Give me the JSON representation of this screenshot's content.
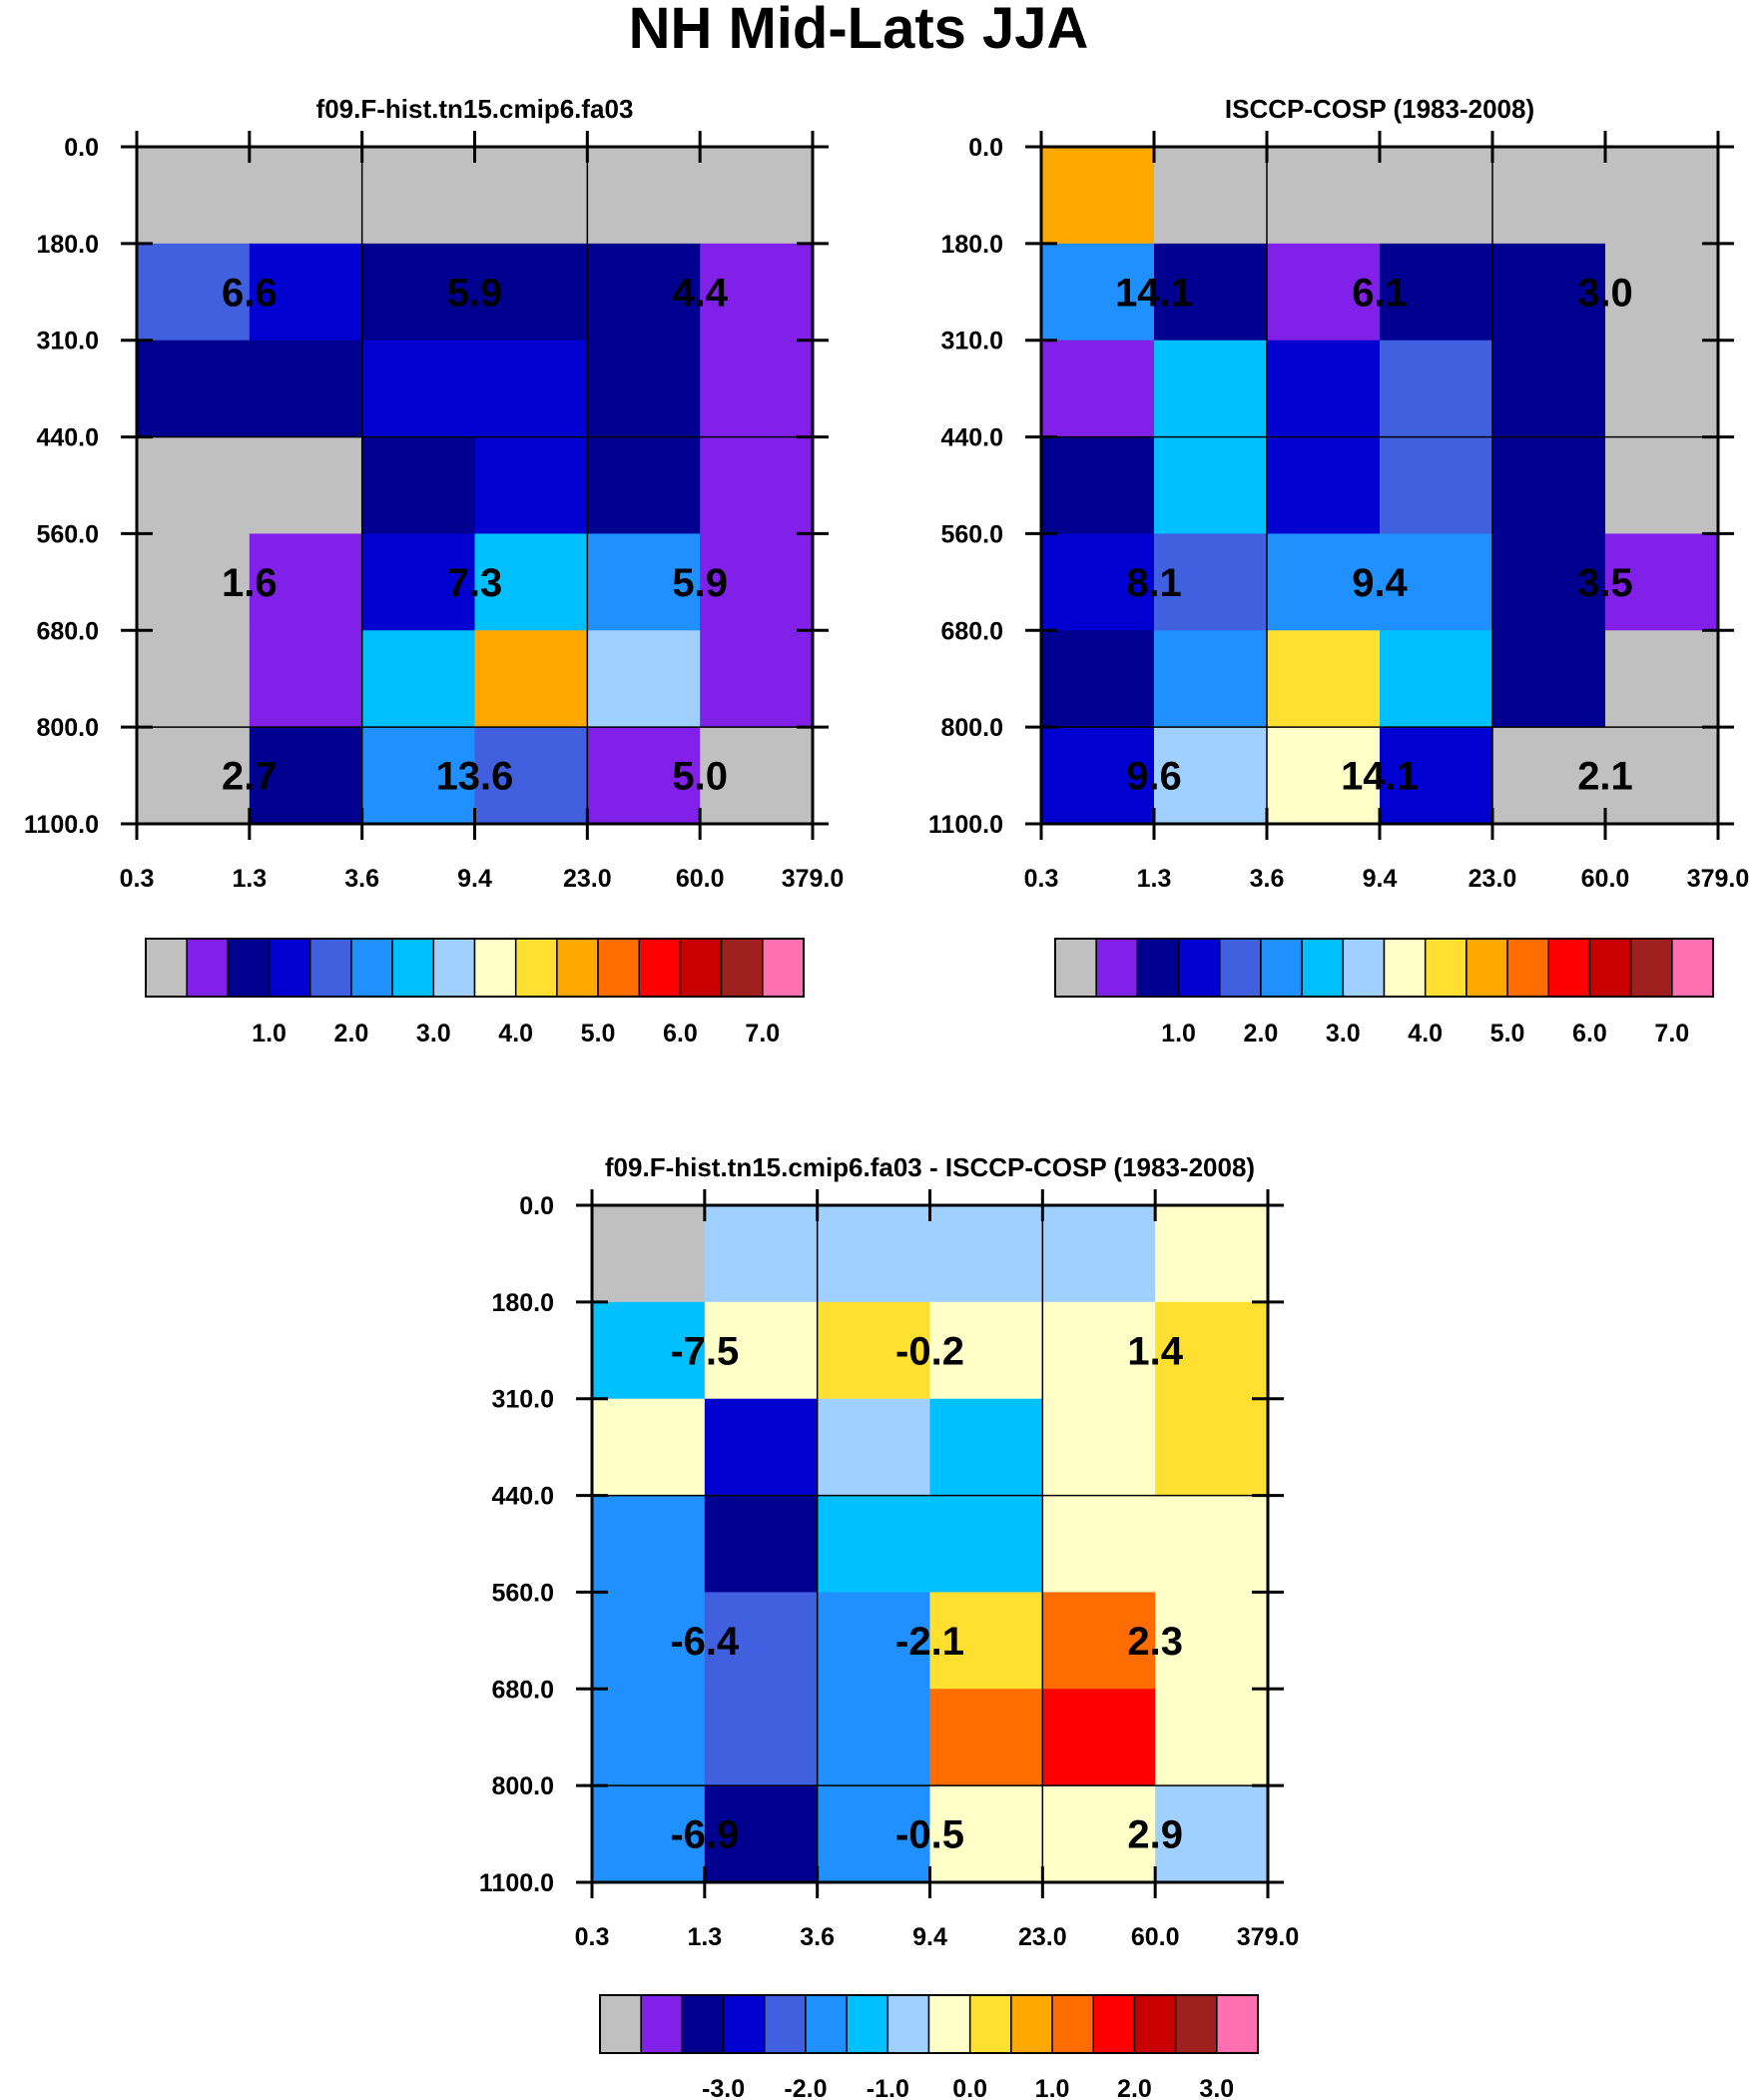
{
  "title": "NH Mid-Lats JJA",
  "palette": [
    "#c0c0c0",
    "#8020e8",
    "#000090",
    "#0000d0",
    "#4060e0",
    "#2090ff",
    "#00c0ff",
    "#a0d0ff",
    "#ffffc8",
    "#ffe030",
    "#ffa800",
    "#ff6c00",
    "#ff0000",
    "#c80000",
    "#a02020",
    "#ff70b0"
  ],
  "chart_data": [
    {
      "type": "heatmap",
      "title": "f09.F-hist.tn15.cmip6.fa03",
      "x_tick_labels": [
        "0.3",
        "1.3",
        "3.6",
        "9.4",
        "23.0",
        "60.0",
        "379.0"
      ],
      "y_tick_labels": [
        "0.0",
        "180.0",
        "310.0",
        "440.0",
        "560.0",
        "680.0",
        "800.0",
        "1100.0"
      ],
      "color_index_grid": [
        [
          0,
          0,
          0,
          0,
          0,
          0
        ],
        [
          4,
          3,
          2,
          2,
          2,
          1
        ],
        [
          2,
          2,
          3,
          3,
          2,
          1
        ],
        [
          0,
          0,
          2,
          3,
          2,
          1
        ],
        [
          0,
          1,
          3,
          6,
          5,
          1
        ],
        [
          0,
          1,
          6,
          10,
          7,
          1
        ],
        [
          0,
          2,
          5,
          4,
          1,
          0
        ]
      ],
      "annotations": [
        {
          "value": "6.6",
          "col": 1,
          "row": 1
        },
        {
          "value": "5.9",
          "col": 3,
          "row": 1
        },
        {
          "value": "4.4",
          "col": 5,
          "row": 1
        },
        {
          "value": "1.6",
          "col": 1,
          "row": 4
        },
        {
          "value": "7.3",
          "col": 3,
          "row": 4
        },
        {
          "value": "5.9",
          "col": 5,
          "row": 4
        },
        {
          "value": "2.7",
          "col": 1,
          "row": 6
        },
        {
          "value": "13.6",
          "col": 3,
          "row": 6
        },
        {
          "value": "5.0",
          "col": 5,
          "row": 6
        }
      ],
      "colorbar_labels": [
        "1.0",
        "2.0",
        "3.0",
        "4.0",
        "5.0",
        "6.0",
        "7.0"
      ]
    },
    {
      "type": "heatmap",
      "title": "ISCCP-COSP (1983-2008)",
      "x_tick_labels": [
        "0.3",
        "1.3",
        "3.6",
        "9.4",
        "23.0",
        "60.0",
        "379.0"
      ],
      "y_tick_labels": [
        "0.0",
        "180.0",
        "310.0",
        "440.0",
        "560.0",
        "680.0",
        "800.0",
        "1100.0"
      ],
      "color_index_grid": [
        [
          10,
          0,
          0,
          0,
          0,
          0
        ],
        [
          5,
          2,
          1,
          2,
          2,
          0
        ],
        [
          1,
          6,
          3,
          4,
          2,
          0
        ],
        [
          2,
          6,
          3,
          4,
          2,
          0
        ],
        [
          3,
          4,
          5,
          5,
          2,
          1
        ],
        [
          2,
          5,
          9,
          6,
          2,
          0
        ],
        [
          3,
          7,
          8,
          3,
          0,
          0
        ]
      ],
      "annotations": [
        {
          "value": "14.1",
          "col": 1,
          "row": 1
        },
        {
          "value": "6.1",
          "col": 3,
          "row": 1
        },
        {
          "value": "3.0",
          "col": 5,
          "row": 1
        },
        {
          "value": "8.1",
          "col": 1,
          "row": 4
        },
        {
          "value": "9.4",
          "col": 3,
          "row": 4
        },
        {
          "value": "3.5",
          "col": 5,
          "row": 4
        },
        {
          "value": "9.6",
          "col": 1,
          "row": 6
        },
        {
          "value": "14.1",
          "col": 3,
          "row": 6
        },
        {
          "value": "2.1",
          "col": 5,
          "row": 6
        }
      ],
      "colorbar_labels": [
        "1.0",
        "2.0",
        "3.0",
        "4.0",
        "5.0",
        "6.0",
        "7.0"
      ]
    },
    {
      "type": "heatmap",
      "title": "f09.F-hist.tn15.cmip6.fa03 - ISCCP-COSP (1983-2008)",
      "x_tick_labels": [
        "0.3",
        "1.3",
        "3.6",
        "9.4",
        "23.0",
        "60.0",
        "379.0"
      ],
      "y_tick_labels": [
        "0.0",
        "180.0",
        "310.0",
        "440.0",
        "560.0",
        "680.0",
        "800.0",
        "1100.0"
      ],
      "color_index_grid": [
        [
          0,
          7,
          7,
          7,
          7,
          8
        ],
        [
          6,
          8,
          9,
          8,
          8,
          9
        ],
        [
          8,
          3,
          7,
          6,
          8,
          9
        ],
        [
          5,
          2,
          6,
          6,
          8,
          8
        ],
        [
          5,
          4,
          5,
          9,
          11,
          8
        ],
        [
          5,
          4,
          5,
          11,
          12,
          8
        ],
        [
          5,
          2,
          5,
          8,
          8,
          7
        ]
      ],
      "annotations": [
        {
          "value": "-7.5",
          "col": 1,
          "row": 1
        },
        {
          "value": "-0.2",
          "col": 3,
          "row": 1
        },
        {
          "value": "1.4",
          "col": 5,
          "row": 1
        },
        {
          "value": "-6.4",
          "col": 1,
          "row": 4
        },
        {
          "value": "-2.1",
          "col": 3,
          "row": 4
        },
        {
          "value": "2.3",
          "col": 5,
          "row": 4
        },
        {
          "value": "-6.9",
          "col": 1,
          "row": 6
        },
        {
          "value": "-0.5",
          "col": 3,
          "row": 6
        },
        {
          "value": "2.9",
          "col": 5,
          "row": 6
        }
      ],
      "colorbar_labels": [
        "-3.0",
        "-2.0",
        "-1.0",
        "0.0",
        "1.0",
        "2.0",
        "3.0"
      ]
    }
  ]
}
